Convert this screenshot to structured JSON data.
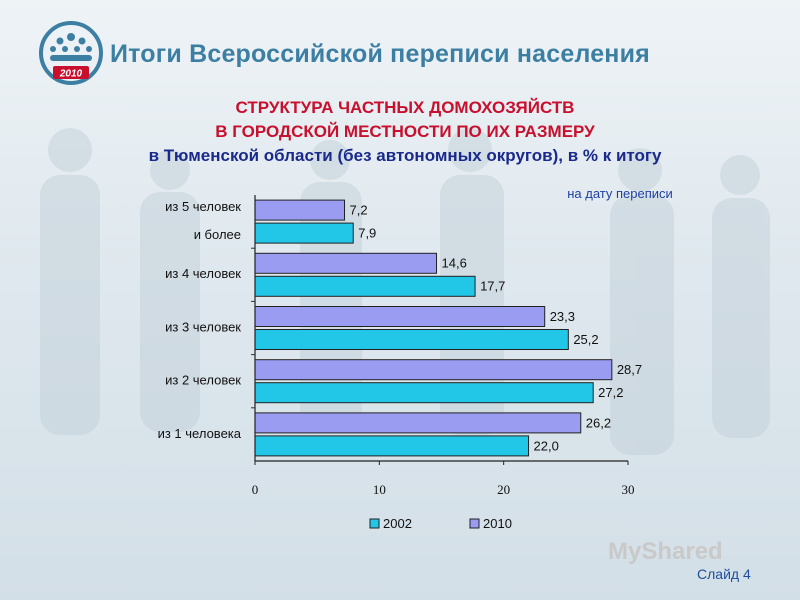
{
  "header": {
    "title": "Итоги Всероссийской переписи населения",
    "logo_year": "2010"
  },
  "chart_data": {
    "type": "bar",
    "orientation": "horizontal",
    "title_lines": [
      "СТРУКТУРА ЧАСТНЫХ ДОМОХОЗЯЙСТВ",
      "В ГОРОДСКОЙ МЕСТНОСТИ ПО ИХ РАЗМЕРУ",
      "в Тюменской области (без автономных округов), в % к итогу"
    ],
    "subtitle": "на дату переписи",
    "categories": [
      {
        "id": "5",
        "label_lines": [
          "из 5 человек",
          "и более"
        ]
      },
      {
        "id": "4",
        "label_lines": [
          "из 4 человек"
        ]
      },
      {
        "id": "3",
        "label_lines": [
          "из 3 человек"
        ]
      },
      {
        "id": "2",
        "label_lines": [
          "из 2 человек"
        ]
      },
      {
        "id": "1",
        "label_lines": [
          "из 1 человека"
        ]
      }
    ],
    "series": [
      {
        "name": "2010",
        "color": "#9a9cf2",
        "values": [
          7.2,
          14.6,
          23.3,
          28.7,
          26.2
        ],
        "labels": [
          "7,2",
          "14,6",
          "23,3",
          "28,7",
          "26,2"
        ]
      },
      {
        "name": "2002",
        "color": "#22c6e6",
        "values": [
          7.9,
          17.7,
          25.2,
          27.2,
          22.0
        ],
        "labels": [
          "7,9",
          "17,7",
          "25,2",
          "27,2",
          "22,0"
        ]
      }
    ],
    "xlim": [
      0,
      30
    ],
    "xticks": [
      0,
      10,
      20,
      30
    ],
    "legend": {
      "placement": "bottom",
      "order": [
        "2002",
        "2010"
      ]
    },
    "grid": false
  },
  "footer": {
    "watermark": "MyShared",
    "slide": "Слайд 4"
  }
}
